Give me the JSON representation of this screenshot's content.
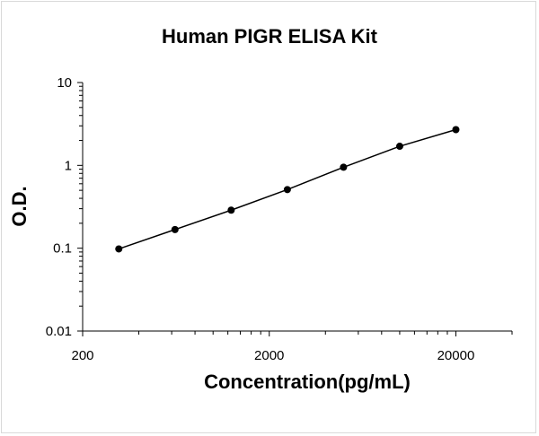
{
  "chart_data": {
    "type": "scatter",
    "title": "Human PIGR ELISA Kit",
    "xlabel": "Concentration(pg/mL)",
    "ylabel": "O.D.",
    "x_scale": "log",
    "y_scale": "log",
    "xlim": [
      200,
      40000
    ],
    "ylim": [
      0.01,
      10
    ],
    "x_ticks": [
      {
        "value": 200,
        "label": "200"
      },
      {
        "value": 2000,
        "label": "2000"
      },
      {
        "value": 20000,
        "label": "20000"
      }
    ],
    "y_ticks": [
      {
        "value": 10,
        "label": "10"
      },
      {
        "value": 1,
        "label": "1"
      },
      {
        "value": 0.1,
        "label": "0.1"
      },
      {
        "value": 0.01,
        "label": "0.01"
      }
    ],
    "grid": false,
    "legend": "none",
    "series": [
      {
        "x": [
          312.5,
          625,
          1250,
          2500,
          5000,
          10000,
          20000
        ],
        "y": [
          0.098,
          0.168,
          0.288,
          0.51,
          0.95,
          1.7,
          2.7
        ]
      }
    ],
    "colors": {
      "marker": "#000000",
      "line": "#000000",
      "axis": "#000000"
    }
  }
}
